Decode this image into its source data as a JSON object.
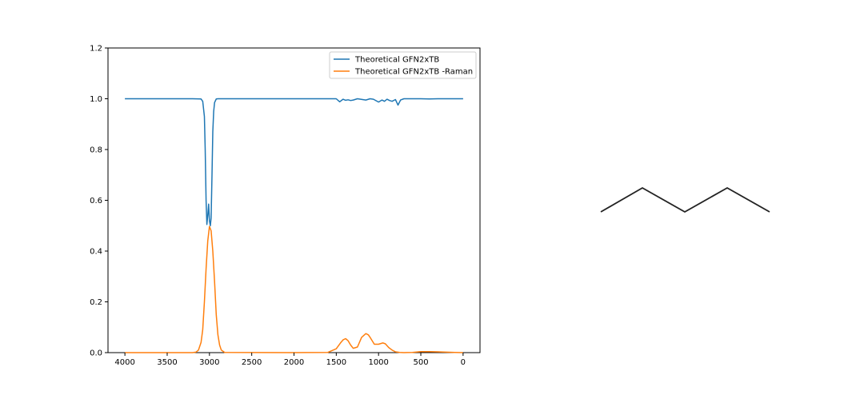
{
  "chart_data": {
    "type": "line",
    "title": "",
    "xlabel": "",
    "ylabel": "",
    "xlim": [
      4200,
      -200
    ],
    "ylim": [
      0,
      1.2
    ],
    "x_inverted": true,
    "xticks": [
      4000,
      3500,
      3000,
      2500,
      2000,
      1500,
      1000,
      500,
      0
    ],
    "xtick_labels": [
      "4000",
      "3500",
      "3000",
      "2500",
      "2000",
      "1500",
      "1000",
      "500",
      "0"
    ],
    "yticks": [
      0.0,
      0.2,
      0.4,
      0.6,
      0.8,
      1.0,
      1.2
    ],
    "ytick_labels": [
      "0.0",
      "0.2",
      "0.4",
      "0.6",
      "0.8",
      "1.0",
      "1.2"
    ],
    "grid": false,
    "legend_position": "top-right",
    "series": [
      {
        "name": "Theoretical GFN2xTB",
        "color": "#1f77b4",
        "x": [
          4000,
          3200,
          3100,
          3080,
          3060,
          3050,
          3040,
          3030,
          3020,
          3010,
          3000,
          2990,
          2980,
          2970,
          2960,
          2950,
          2940,
          2920,
          2900,
          2000,
          1500,
          1460,
          1420,
          1390,
          1360,
          1330,
          1300,
          1250,
          1150,
          1100,
          1060,
          1000,
          960,
          930,
          900,
          870,
          840,
          800,
          770,
          740,
          700,
          500,
          400,
          300,
          0
        ],
        "y": [
          1.0,
          1.0,
          0.999,
          0.99,
          0.93,
          0.8,
          0.6,
          0.505,
          0.54,
          0.585,
          0.52,
          0.5,
          0.53,
          0.7,
          0.87,
          0.95,
          0.985,
          0.999,
          1.0,
          1.0,
          1.0,
          0.988,
          0.998,
          0.994,
          0.996,
          0.993,
          0.995,
          1.0,
          0.995,
          1.0,
          0.998,
          0.987,
          0.995,
          0.99,
          0.998,
          0.993,
          0.99,
          0.997,
          0.975,
          0.995,
          1.0,
          1.0,
          0.999,
          1.0,
          1.0
        ]
      },
      {
        "name": "Theoretical GFN2xTB -Raman",
        "color": "#ff7f0e",
        "x": [
          4000,
          3200,
          3160,
          3130,
          3100,
          3080,
          3060,
          3040,
          3020,
          3000,
          2980,
          2960,
          2940,
          2920,
          2900,
          2880,
          2860,
          2820,
          2000,
          1600,
          1500,
          1450,
          1420,
          1390,
          1360,
          1330,
          1300,
          1250,
          1200,
          1150,
          1120,
          1100,
          1050,
          1000,
          950,
          920,
          880,
          840,
          800,
          750,
          700,
          600,
          500,
          400,
          300,
          200,
          100,
          0
        ],
        "y": [
          0.0,
          0.0,
          0.002,
          0.01,
          0.04,
          0.09,
          0.2,
          0.33,
          0.44,
          0.497,
          0.48,
          0.4,
          0.28,
          0.15,
          0.07,
          0.03,
          0.01,
          0.001,
          0.0,
          0.001,
          0.015,
          0.038,
          0.05,
          0.055,
          0.047,
          0.03,
          0.017,
          0.022,
          0.06,
          0.075,
          0.07,
          0.06,
          0.033,
          0.033,
          0.038,
          0.035,
          0.02,
          0.01,
          0.003,
          0.001,
          0.0,
          0.001,
          0.004,
          0.004,
          0.003,
          0.002,
          0.001,
          0.0
        ]
      }
    ]
  },
  "molecule": {
    "type": "skeletal-structure",
    "description": "zig-zag carbon chain (5 atoms)",
    "bond_color": "#222222"
  }
}
